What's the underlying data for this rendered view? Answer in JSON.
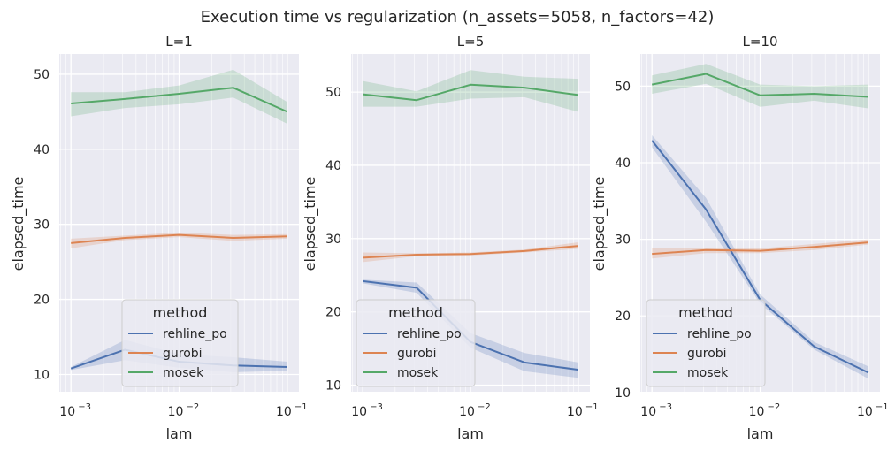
{
  "title": "Execution time vs regularization (n_assets=5058, n_factors=42)",
  "colors": {
    "rehline_po": "#4c72b0",
    "gurobi": "#dd8452",
    "mosek": "#55a868",
    "panel_bg": "#eaeaf2",
    "grid": "#ffffff"
  },
  "chart_data": [
    {
      "type": "line",
      "title": "L=1",
      "xlabel": "lam",
      "ylabel": "elapsed_time",
      "xscale": "log",
      "xlim": [
        0.00078,
        0.128
      ],
      "ylim": [
        7.7,
        52.7
      ],
      "x_ticks": [
        0.001,
        0.01,
        0.1
      ],
      "x_tick_labels": [
        "10",
        "10",
        "10"
      ],
      "x_tick_exponents": [
        "−3",
        "−2",
        "−1"
      ],
      "y_ticks": [
        10,
        20,
        30,
        40,
        50
      ],
      "y_tick_labels": [
        "10",
        "20",
        "30",
        "40",
        "50"
      ],
      "x": [
        0.001,
        0.00316,
        0.01,
        0.0316,
        0.1
      ],
      "grid": true,
      "legend": {
        "title": "method",
        "placement": "lower-center",
        "entries": [
          "rehline_po",
          "gurobi",
          "mosek"
        ]
      },
      "series": [
        {
          "name": "rehline_po",
          "values": [
            10.8,
            13.3,
            11.7,
            11.2,
            11.0
          ],
          "lower": [
            10.6,
            11.9,
            10.9,
            10.3,
            10.5
          ],
          "upper": [
            11.0,
            14.6,
            12.7,
            12.3,
            11.7
          ]
        },
        {
          "name": "gurobi",
          "values": [
            27.5,
            28.2,
            28.6,
            28.2,
            28.4
          ],
          "lower": [
            26.8,
            27.9,
            28.3,
            27.8,
            28.1
          ],
          "upper": [
            28.1,
            28.5,
            28.9,
            28.6,
            28.7
          ]
        },
        {
          "name": "mosek",
          "values": [
            46.1,
            46.7,
            47.4,
            48.2,
            45.0
          ],
          "lower": [
            44.4,
            45.5,
            46.0,
            46.9,
            43.4
          ],
          "upper": [
            47.6,
            47.6,
            48.5,
            50.6,
            46.3
          ]
        }
      ]
    },
    {
      "type": "line",
      "title": "L=5",
      "xlabel": "lam",
      "ylabel": "elapsed_time",
      "xscale": "log",
      "xlim": [
        0.00078,
        0.128
      ],
      "ylim": [
        9.1,
        55.2
      ],
      "x_ticks": [
        0.001,
        0.01,
        0.1
      ],
      "x_tick_labels": [
        "10",
        "10",
        "10"
      ],
      "x_tick_exponents": [
        "−3",
        "−2",
        "−1"
      ],
      "y_ticks": [
        10,
        20,
        30,
        40,
        50
      ],
      "y_tick_labels": [
        "10",
        "20",
        "30",
        "40",
        "50"
      ],
      "x": [
        0.001,
        0.00316,
        0.01,
        0.0316,
        0.1
      ],
      "grid": true,
      "legend": {
        "title": "method",
        "placement": "lower-left",
        "entries": [
          "rehline_po",
          "gurobi",
          "mosek"
        ]
      },
      "series": [
        {
          "name": "rehline_po",
          "values": [
            24.2,
            23.3,
            15.9,
            13.1,
            12.1
          ],
          "lower": [
            23.9,
            22.6,
            15.1,
            11.9,
            11.0
          ],
          "upper": [
            24.4,
            24.0,
            17.1,
            14.4,
            13.1
          ]
        },
        {
          "name": "gurobi",
          "values": [
            27.4,
            27.8,
            27.9,
            28.3,
            29.0
          ],
          "lower": [
            26.8,
            27.6,
            27.7,
            28.1,
            28.6
          ],
          "upper": [
            28.1,
            28.0,
            28.1,
            28.5,
            29.5
          ]
        },
        {
          "name": "mosek",
          "values": [
            49.7,
            48.9,
            51.0,
            50.6,
            49.6
          ],
          "lower": [
            48.0,
            48.0,
            49.1,
            49.3,
            47.3
          ],
          "upper": [
            51.5,
            50.1,
            53.0,
            52.1,
            51.8
          ]
        }
      ]
    },
    {
      "type": "line",
      "title": "L=10",
      "xlabel": "lam",
      "ylabel": "elapsed_time",
      "xscale": "log",
      "xlim": [
        0.00078,
        0.128
      ],
      "ylim": [
        10.1,
        54.2
      ],
      "x_ticks": [
        0.001,
        0.01,
        0.1
      ],
      "x_tick_labels": [
        "10",
        "10",
        "10"
      ],
      "x_tick_exponents": [
        "−3",
        "−2",
        "−1"
      ],
      "y_ticks": [
        10,
        20,
        30,
        40,
        50
      ],
      "y_tick_labels": [
        "10",
        "20",
        "30",
        "40",
        "50"
      ],
      "x": [
        0.001,
        0.00316,
        0.01,
        0.0316,
        0.1
      ],
      "grid": true,
      "legend": {
        "title": "method",
        "placement": "lower-left",
        "entries": [
          "rehline_po",
          "gurobi",
          "mosek"
        ]
      },
      "series": [
        {
          "name": "rehline_po",
          "values": [
            42.9,
            33.9,
            22.1,
            16.0,
            12.6
          ],
          "lower": [
            42.0,
            32.3,
            21.6,
            15.6,
            11.8
          ],
          "upper": [
            43.6,
            35.4,
            22.8,
            16.6,
            13.4
          ]
        },
        {
          "name": "gurobi",
          "values": [
            28.1,
            28.6,
            28.5,
            29.0,
            29.6
          ],
          "lower": [
            27.5,
            28.2,
            28.2,
            28.6,
            29.3
          ],
          "upper": [
            28.8,
            28.9,
            28.8,
            29.4,
            30.0
          ]
        },
        {
          "name": "mosek",
          "values": [
            50.2,
            51.6,
            48.8,
            49.0,
            48.6
          ],
          "lower": [
            49.0,
            50.3,
            47.3,
            48.1,
            47.1
          ],
          "upper": [
            51.4,
            52.9,
            50.2,
            50.0,
            50.2
          ]
        }
      ]
    }
  ]
}
